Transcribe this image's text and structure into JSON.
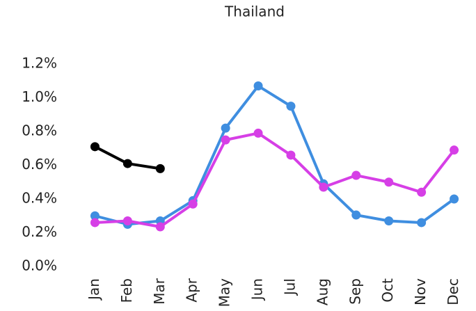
{
  "chart_data": {
    "type": "line",
    "title": "Thailand",
    "categories": [
      "Jan",
      "Feb",
      "Mar",
      "Apr",
      "May",
      "Jun",
      "Jul",
      "Aug",
      "Sep",
      "Oct",
      "Nov",
      "Dec"
    ],
    "series": [
      {
        "color": "#3f8ee0",
        "values": [
          0.3,
          0.25,
          0.27,
          0.39,
          0.82,
          1.07,
          0.95,
          0.49,
          0.305,
          0.27,
          0.26,
          0.4
        ]
      },
      {
        "color": "#d63fe6",
        "values": [
          0.26,
          0.27,
          0.235,
          0.37,
          0.75,
          0.79,
          0.66,
          0.47,
          0.54,
          0.5,
          0.44,
          0.69
        ]
      },
      {
        "color": "#000000",
        "values": [
          0.71,
          0.61,
          0.58,
          null,
          null,
          null,
          null,
          null,
          null,
          null,
          null,
          null
        ]
      }
    ],
    "ylim": [
      0,
      1.2
    ],
    "yticks": [
      {
        "value": 0,
        "label": "0.0%"
      },
      {
        "value": 0.2,
        "label": "0.2%"
      },
      {
        "value": 0.4,
        "label": "0.4%"
      },
      {
        "value": 0.6,
        "label": "0.6%"
      },
      {
        "value": 0.8,
        "label": "0.8%"
      },
      {
        "value": 1.0,
        "label": "1.0%"
      },
      {
        "value": 1.2,
        "label": "1.2%"
      }
    ],
    "grid": false
  }
}
